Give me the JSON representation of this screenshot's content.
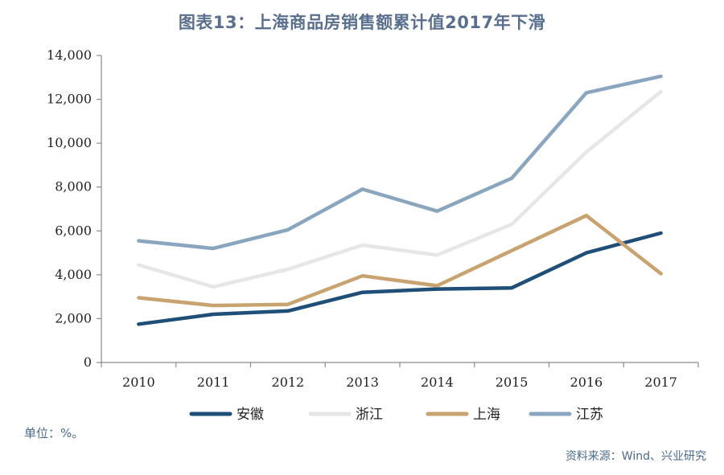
{
  "chart_data": {
    "type": "line",
    "title": "图表13：上海商品房销售额累计值2017年下滑",
    "categories": [
      "2010",
      "2011",
      "2012",
      "2013",
      "2014",
      "2015",
      "2016",
      "2017"
    ],
    "ylim": [
      0,
      14000
    ],
    "yticks": [
      0,
      2000,
      4000,
      6000,
      8000,
      10000,
      12000,
      14000
    ],
    "ytick_labels": [
      "0",
      "2,000",
      "4,000",
      "6,000",
      "8,000",
      "10,000",
      "12,000",
      "14,000"
    ],
    "xlabel": "",
    "ylabel": "",
    "grid": false,
    "legend_position": "bottom",
    "series": [
      {
        "name": "安徽",
        "color": "#1f4e79",
        "values": [
          1750,
          2200,
          2350,
          3200,
          3350,
          3400,
          5000,
          5900
        ]
      },
      {
        "name": "浙江",
        "color": "#e6e6e6",
        "values": [
          4450,
          3450,
          4250,
          5350,
          4900,
          6300,
          9600,
          12350
        ]
      },
      {
        "name": "上海",
        "color": "#c8a370",
        "values": [
          2950,
          2600,
          2650,
          3950,
          3500,
          5100,
          6700,
          4050
        ]
      },
      {
        "name": "江苏",
        "color": "#8aa6bf",
        "values": [
          5550,
          5200,
          6050,
          7900,
          6900,
          8400,
          12300,
          13050
        ]
      }
    ]
  },
  "notes": {
    "unit": "单位：%。",
    "source": "资料来源：Wind、兴业研究"
  }
}
